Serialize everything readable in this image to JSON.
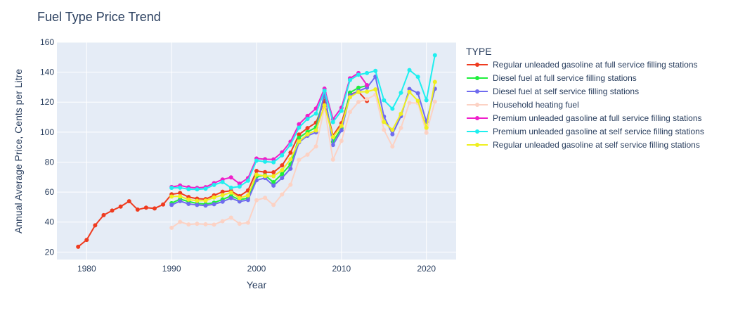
{
  "chart_data": {
    "type": "line",
    "title": "Fuel Type Price Trend",
    "xlabel": "Year",
    "ylabel": "Annual Average Price, Cents per Litre",
    "xlim": [
      1976.5,
      2023.5
    ],
    "ylim": [
      15,
      160
    ],
    "x_ticks": [
      1980,
      1990,
      2000,
      2010,
      2020
    ],
    "y_ticks": [
      20,
      40,
      60,
      80,
      100,
      120,
      140,
      160
    ],
    "legend_title": "TYPE",
    "legend_position": "right",
    "grid": true,
    "series": [
      {
        "name": "Regular unleaded gasoline at full service filling stations",
        "color": "#EF3B1F",
        "x": [
          1979,
          1980,
          1981,
          1982,
          1983,
          1984,
          1985,
          1986,
          1987,
          1988,
          1989,
          1990,
          1991,
          1992,
          1993,
          1994,
          1995,
          1996,
          1997,
          1998,
          1999,
          2000,
          2001,
          2002,
          2003,
          2004,
          2005,
          2006,
          2007,
          2008,
          2009,
          2010,
          2011,
          2012,
          2013
        ],
        "y": [
          23.5,
          28.1,
          37.8,
          44.6,
          47.7,
          50.3,
          53.9,
          48.3,
          49.6,
          49.1,
          51.7,
          58.5,
          59.4,
          56.7,
          55.6,
          55.3,
          57.8,
          60.2,
          60.8,
          57.3,
          61.1,
          74.1,
          73.3,
          73.2,
          77.8,
          86.3,
          98.4,
          102.7,
          106.3,
          120.9,
          97.7,
          106.0,
          125.3,
          126.9,
          120.8
        ]
      },
      {
        "name": "Diesel fuel at full service filling stations",
        "color": "#1FEF3C",
        "x": [
          1990,
          1991,
          1992,
          1993,
          1994,
          1995,
          1996,
          1997,
          1998,
          1999,
          2000,
          2001,
          2002,
          2003,
          2004,
          2005,
          2006,
          2007,
          2008,
          2009,
          2010,
          2011,
          2012,
          2013
        ],
        "y": [
          52.6,
          55.3,
          53.7,
          52.4,
          52.0,
          52.9,
          55.1,
          57.4,
          55.0,
          55.8,
          70.5,
          71.1,
          66.6,
          72.1,
          78.5,
          96.3,
          100.1,
          103.2,
          125.1,
          93.6,
          102.6,
          126.4,
          129.6,
          131.0
        ]
      },
      {
        "name": "Diesel fuel at self service filling stations",
        "color": "#6F6BEF",
        "x": [
          1990,
          1991,
          1992,
          1993,
          1994,
          1995,
          1996,
          1997,
          1998,
          1999,
          2000,
          2001,
          2002,
          2003,
          2004,
          2005,
          2006,
          2007,
          2008,
          2009,
          2010,
          2011,
          2012,
          2013,
          2014,
          2015,
          2016,
          2017,
          2018,
          2019,
          2020,
          2021
        ],
        "y": [
          51.4,
          54.0,
          52.1,
          51.4,
          51.0,
          51.9,
          53.6,
          56.0,
          53.7,
          54.7,
          67.9,
          69.4,
          64.3,
          69.4,
          75.6,
          93.2,
          97.6,
          99.8,
          126.2,
          91.4,
          101.2,
          124.5,
          127.4,
          129.7,
          137.0,
          110.4,
          98.6,
          110.6,
          128.8,
          126.0,
          106.9,
          128.9
        ]
      },
      {
        "name": "Household heating fuel",
        "color": "#FCD2C4",
        "x": [
          1990,
          1991,
          1992,
          1993,
          1994,
          1995,
          1996,
          1997,
          1998,
          1999,
          2000,
          2001,
          2002,
          2003,
          2004,
          2005,
          2006,
          2007,
          2008,
          2009,
          2010,
          2011,
          2012,
          2013,
          2014,
          2015,
          2016,
          2017,
          2018,
          2019,
          2020,
          2021
        ],
        "y": [
          36.2,
          40.1,
          38.4,
          38.8,
          38.5,
          38.3,
          40.6,
          42.9,
          38.9,
          39.6,
          54.6,
          56.2,
          51.4,
          58.4,
          64.9,
          81.5,
          85.0,
          90.5,
          116.3,
          81.7,
          94.2,
          113.5,
          120.1,
          122.0,
          125.0,
          101.5,
          90.4,
          102.8,
          119.6,
          119.4,
          99.6,
          120.3
        ]
      },
      {
        "name": "Premium unleaded gasoline at full service filling stations",
        "color": "#EF1FCA",
        "x": [
          1990,
          1991,
          1992,
          1993,
          1994,
          1995,
          1996,
          1997,
          1998,
          1999,
          2000,
          2001,
          2002,
          2003,
          2004,
          2005,
          2006,
          2007,
          2008,
          2009,
          2010,
          2011,
          2012,
          2013
        ],
        "y": [
          63.4,
          64.4,
          63.2,
          62.8,
          63.3,
          66.0,
          68.4,
          69.8,
          65.6,
          69.3,
          82.4,
          81.9,
          81.8,
          86.5,
          93.6,
          105.3,
          110.8,
          115.8,
          129.0,
          108.7,
          116.3,
          135.9,
          139.4,
          131.4
        ]
      },
      {
        "name": "Premium unleaded gasoline at self service filling stations",
        "color": "#1FEFEF",
        "x": [
          1990,
          1991,
          1992,
          1993,
          1994,
          1995,
          1996,
          1997,
          1998,
          1999,
          2000,
          2001,
          2002,
          2003,
          2004,
          2005,
          2006,
          2007,
          2008,
          2009,
          2010,
          2011,
          2012,
          2013,
          2014,
          2015,
          2016,
          2017,
          2018,
          2019,
          2020,
          2021
        ],
        "y": [
          62.8,
          62.9,
          61.9,
          61.8,
          62.2,
          64.8,
          66.7,
          62.9,
          63.7,
          67.6,
          81.0,
          80.3,
          79.9,
          84.5,
          91.6,
          103.0,
          108.8,
          112.4,
          127.6,
          106.7,
          114.2,
          134.7,
          138.3,
          139.4,
          140.9,
          121.3,
          115.6,
          126.3,
          141.4,
          136.9,
          121.3,
          151.3
        ]
      },
      {
        "name": "Regular unleaded gasoline at self service filling stations",
        "color": "#EFEF1F",
        "x": [
          1990,
          1991,
          1992,
          1993,
          1994,
          1995,
          1996,
          1997,
          1998,
          1999,
          2000,
          2001,
          2002,
          2003,
          2004,
          2005,
          2006,
          2007,
          2008,
          2009,
          2010,
          2011,
          2012,
          2013,
          2014,
          2015,
          2016,
          2017,
          2018,
          2019,
          2020,
          2021
        ],
        "y": [
          57.0,
          57.2,
          55.0,
          54.2,
          54.3,
          56.4,
          58.0,
          59.7,
          56.0,
          57.8,
          71.6,
          70.7,
          70.6,
          74.6,
          81.9,
          93.8,
          98.6,
          101.1,
          117.9,
          96.7,
          104.2,
          123.3,
          126.8,
          127.0,
          128.5,
          106.8,
          101.5,
          112.2,
          126.8,
          120.9,
          102.9,
          133.5
        ]
      }
    ]
  }
}
